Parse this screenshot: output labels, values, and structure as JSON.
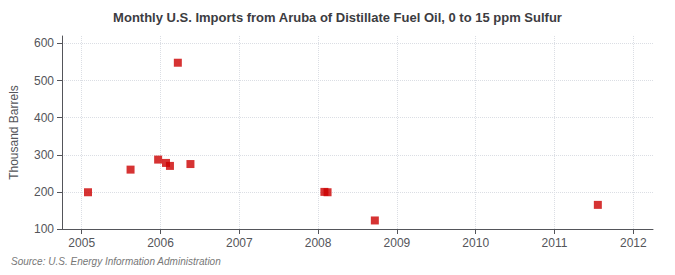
{
  "chart_data": {
    "type": "scatter",
    "title": "Monthly U.S. Imports from Aruba of Distillate Fuel Oil, 0 to 15 ppm Sulfur",
    "ylabel": "Thousand Barrels",
    "annotations": [
      "Source: U.S. Energy Information Administration"
    ],
    "x": [
      2005.08,
      2005.62,
      2005.97,
      2006.07,
      2006.12,
      2006.22,
      2006.38,
      2008.08,
      2008.12,
      2008.72,
      2011.55
    ],
    "values": [
      199,
      260,
      287,
      278,
      270,
      548,
      275,
      200,
      199,
      123,
      165
    ],
    "color": "#cc0000",
    "marker": "square",
    "xlim": [
      2004.75,
      2012.25
    ],
    "xticks": [
      2005,
      2006,
      2007,
      2008,
      2009,
      2010,
      2011,
      2012
    ],
    "ylim": [
      100,
      620
    ],
    "yticks": [
      100,
      200,
      300,
      400,
      500,
      600
    ],
    "grid": true
  }
}
